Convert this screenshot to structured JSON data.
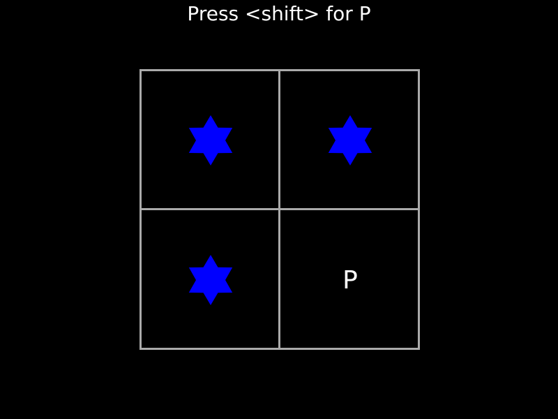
{
  "instruction": "Press <shift> for P",
  "colors": {
    "background": "#000000",
    "grid_line": "#aaaaaa",
    "star": "#0000ff",
    "text": "#ffffff"
  },
  "grid": {
    "rows": 2,
    "cols": 2,
    "cells": [
      {
        "content": "star",
        "icon": "six-point-star-icon"
      },
      {
        "content": "star",
        "icon": "six-point-star-icon"
      },
      {
        "content": "star",
        "icon": "six-point-star-icon"
      },
      {
        "content": "letter",
        "letter": "P"
      }
    ]
  }
}
